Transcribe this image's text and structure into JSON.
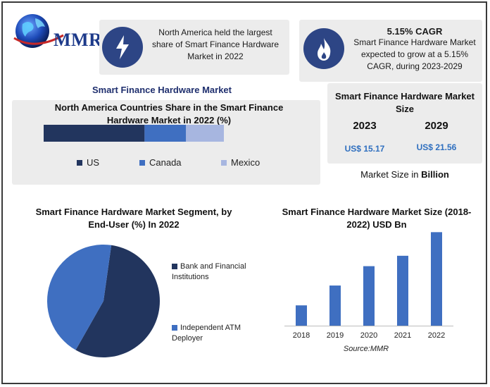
{
  "brand": {
    "logo_text": "MMR"
  },
  "info_cards": [
    {
      "icon": "lightning-bolt-icon",
      "text": "North America held the largest share of Smart Finance Hardware Market in 2022"
    },
    {
      "icon": "flame-icon",
      "heading": "5.15% CAGR",
      "text": "Smart Finance Hardware Market expected to grow at a 5.15% CAGR, during 2023-2029"
    }
  ],
  "section_title": "Smart Finance Hardware Market",
  "market_size": {
    "title": "Smart Finance Hardware Market Size",
    "years": [
      "2023",
      "2029"
    ],
    "values": [
      "US$ 15.17",
      "US$ 21.56"
    ],
    "unit_prefix": "Market Size in ",
    "unit_bold": "Billion"
  },
  "colors": {
    "dark_navy": "#22355e",
    "mid_blue": "#3f6fc1",
    "light_blue": "#a7b6e0",
    "bar_blue": "#3f6fc1",
    "icon_bg": "#2d4585"
  },
  "chart_data": [
    {
      "type": "bar",
      "orientation": "horizontal-stacked",
      "title": "North America Countries Share in the Smart Finance Hardware Market in 2022 (%)",
      "series": [
        {
          "name": "US",
          "values": [
            56
          ]
        },
        {
          "name": "Canada",
          "values": [
            23
          ]
        },
        {
          "name": "Mexico",
          "values": [
            21
          ]
        }
      ],
      "legend": "bottom"
    },
    {
      "type": "pie",
      "title": "Smart Finance Hardware Market Segment, by End-User (%) In 2022",
      "labels": [
        "Bank and Financial Institutions",
        "Independent ATM Deployer"
      ],
      "values": [
        56,
        44
      ],
      "legend": "right"
    },
    {
      "type": "bar",
      "title": "Smart Finance Hardware Market Size (2018-2022) USD Bn",
      "categories": [
        "2018",
        "2019",
        "2020",
        "2021",
        "2022"
      ],
      "values": [
        4.3,
        8.5,
        12.6,
        14.8,
        19.8
      ],
      "ylim": [
        0,
        20
      ],
      "source": "Source:MMR"
    }
  ]
}
